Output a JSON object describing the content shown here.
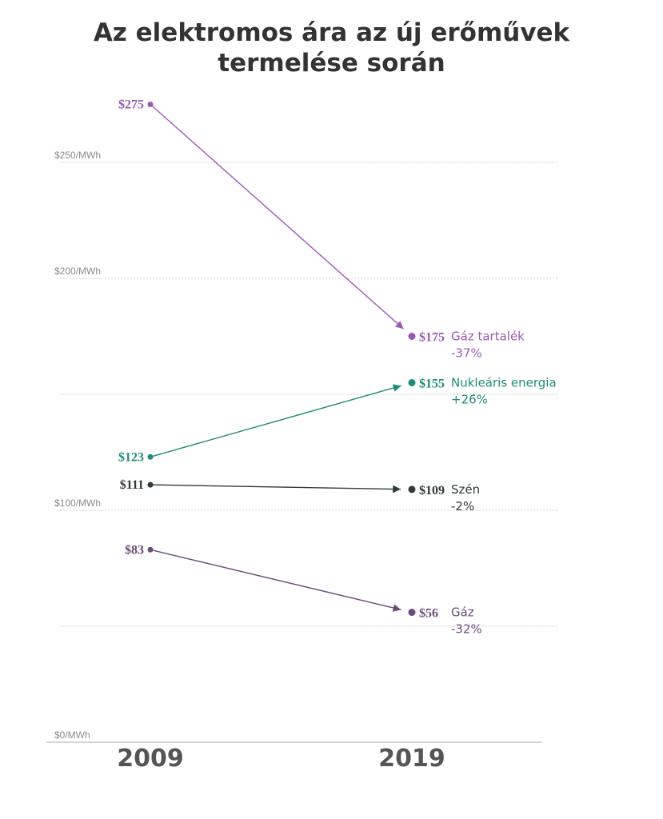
{
  "chart_data": {
    "type": "line",
    "title_lines": [
      "Az elektromos ára az új erőművek",
      "termelése során"
    ],
    "categories": [
      "2009",
      "2019"
    ],
    "ylim": [
      0,
      300
    ],
    "yticks": [
      {
        "value": 0,
        "label": "$0/MWh"
      },
      {
        "value": 50,
        "label": ""
      },
      {
        "value": 100,
        "label": "$100/MWh"
      },
      {
        "value": 150,
        "label": ""
      },
      {
        "value": 200,
        "label": "$200/MWh"
      },
      {
        "value": 250,
        "label": "$250/MWh"
      }
    ],
    "grid": true,
    "series": [
      {
        "name": "Gáz tartalék",
        "change": "-37%",
        "values": [
          275,
          175
        ],
        "start_label": "$275",
        "end_label": "$175",
        "color": "#9b59b6"
      },
      {
        "name": "Nukleáris energia",
        "change": "+26%",
        "values": [
          123,
          155
        ],
        "start_label": "$123",
        "end_label": "$155",
        "color": "#1e8c78"
      },
      {
        "name": "Szén",
        "change": "-2%",
        "values": [
          111,
          109
        ],
        "start_label": "$111",
        "end_label": "$109",
        "color": "#2f3a36"
      },
      {
        "name": "Gáz",
        "change": "-32%",
        "values": [
          83,
          56
        ],
        "start_label": "$83",
        "end_label": "$56",
        "color": "#6b4c7a"
      }
    ]
  }
}
